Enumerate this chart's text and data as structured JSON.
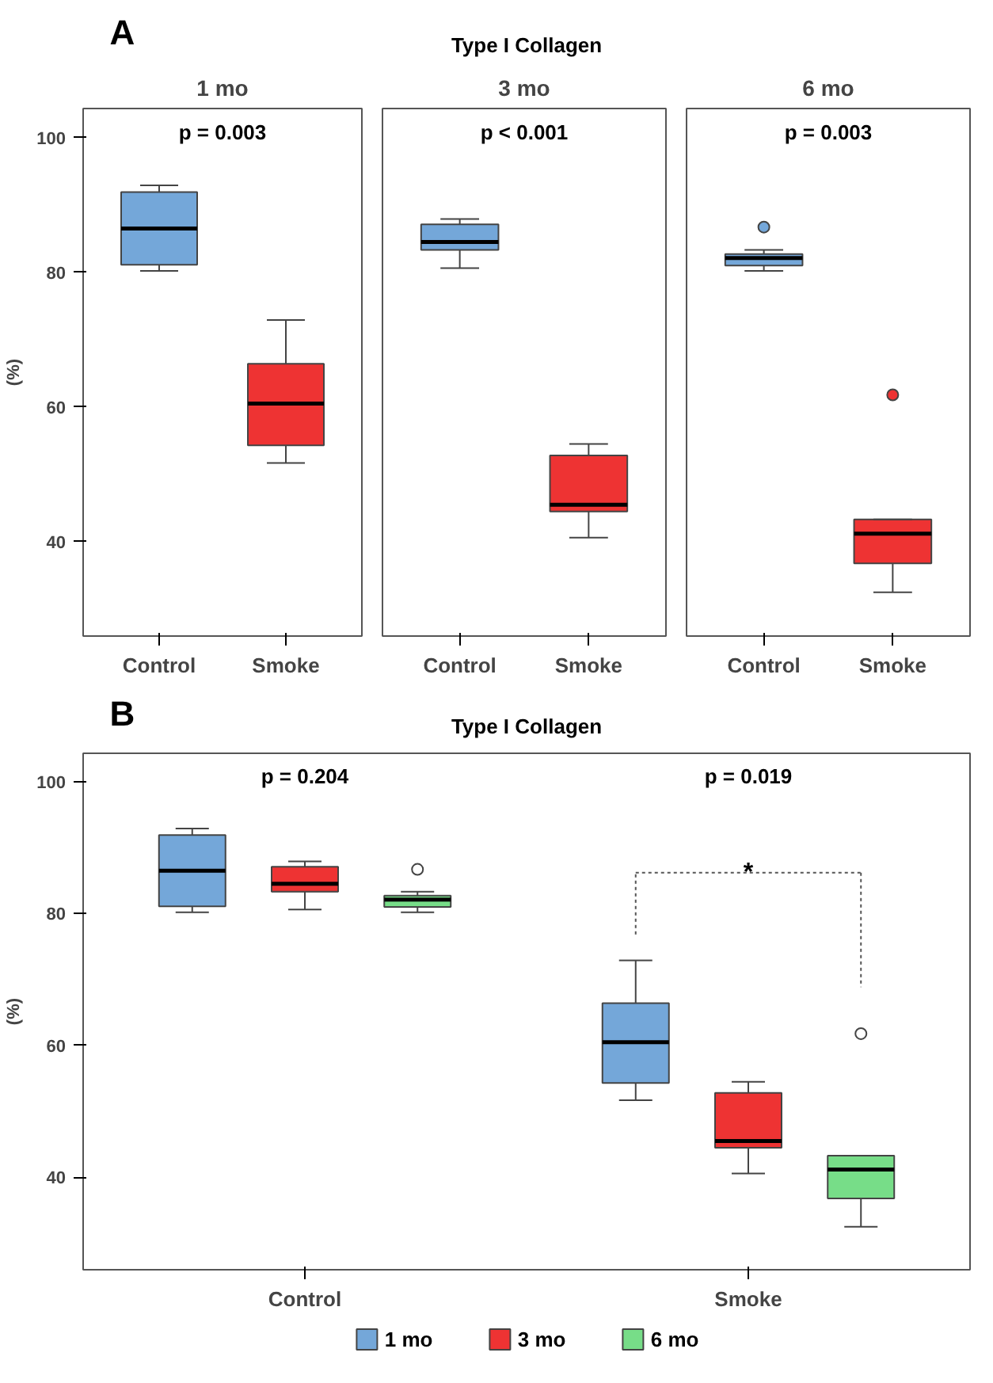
{
  "chart_data": [
    {
      "type": "box",
      "title": "1 mo",
      "ylabel": "(%)",
      "annotations": [
        "A",
        "Type I Collagen",
        "p = 0.003"
      ],
      "categories": [
        "Control",
        "Smoke"
      ],
      "colors": [
        "#74a7d9",
        "#ee3333"
      ],
      "ylim": [
        26,
        104.3
      ],
      "yticks": [
        40,
        60,
        80,
        100
      ],
      "grid": false,
      "boxes": [
        {
          "low": 80.2,
          "q1": 81.1,
          "median": 86.5,
          "q3": 91.9,
          "high": 92.9
        },
        {
          "low": 51.7,
          "q1": 54.3,
          "median": 60.5,
          "q3": 66.4,
          "high": 72.9
        }
      ]
    },
    {
      "type": "box",
      "title": "3 mo",
      "annotations": [
        "p < 0.001"
      ],
      "categories": [
        "Control",
        "Smoke"
      ],
      "colors": [
        "#74a7d9",
        "#ee3333"
      ],
      "ylim": [
        26,
        104.3
      ],
      "yticks": [
        40,
        60,
        80,
        100
      ],
      "tick_labels": "x",
      "grid": false,
      "boxes": [
        {
          "low": 80.6,
          "q1": 83.3,
          "median": 84.5,
          "q3": 87.1,
          "high": 87.9
        },
        {
          "low": 40.6,
          "q1": 44.5,
          "median": 45.5,
          "q3": 52.8,
          "high": 54.5
        }
      ]
    },
    {
      "type": "box",
      "title": "6 mo",
      "annotations": [
        "p = 0.003"
      ],
      "categories": [
        "Control",
        "Smoke"
      ],
      "colors": [
        "#74a7d9",
        "#ee3333"
      ],
      "ylim": [
        26,
        104.3
      ],
      "yticks": [
        40,
        60,
        80,
        100
      ],
      "tick_labels": "x",
      "grid": false,
      "boxes": [
        {
          "low": 80.2,
          "q1": 81.0,
          "median": 82.1,
          "q3": 82.7,
          "high": 83.3,
          "outliers": [
            86.7
          ]
        },
        {
          "low": 32.5,
          "q1": 36.8,
          "median": 41.2,
          "q3": 43.3,
          "high": 43.3,
          "outliers": [
            61.8
          ]
        }
      ]
    },
    {
      "type": "box",
      "ylabel": "(%)",
      "annotations": [
        "B",
        "Type I Collagen",
        "p = 0.204",
        "p = 0.019",
        "*"
      ],
      "categories": [
        "Control",
        "Smoke"
      ],
      "ylim": [
        26,
        104.3
      ],
      "yticks": [
        40,
        60,
        80,
        100
      ],
      "grid": false,
      "legend": "bottom",
      "series": [
        {
          "name": "1 mo",
          "color": "#74a7d9",
          "boxes": [
            {
              "low": 80.2,
              "q1": 81.1,
              "median": 86.5,
              "q3": 91.9,
              "high": 92.9
            },
            {
              "low": 51.7,
              "q1": 54.3,
              "median": 60.5,
              "q3": 66.4,
              "high": 72.9
            }
          ]
        },
        {
          "name": "3 mo",
          "color": "#ee3333",
          "boxes": [
            {
              "low": 80.6,
              "q1": 83.3,
              "median": 84.5,
              "q3": 87.1,
              "high": 87.9
            },
            {
              "low": 40.6,
              "q1": 44.5,
              "median": 45.5,
              "q3": 52.8,
              "high": 54.5
            }
          ]
        },
        {
          "name": "6 mo",
          "color": "#77dd88",
          "boxes": [
            {
              "low": 80.2,
              "q1": 81.0,
              "median": 82.1,
              "q3": 82.7,
              "high": 83.3,
              "outliers": [
                86.7
              ]
            },
            {
              "low": 32.5,
              "q1": 36.8,
              "median": 41.2,
              "q3": 43.3,
              "high": 43.3,
              "outliers": [
                61.8
              ]
            }
          ]
        }
      ]
    }
  ]
}
